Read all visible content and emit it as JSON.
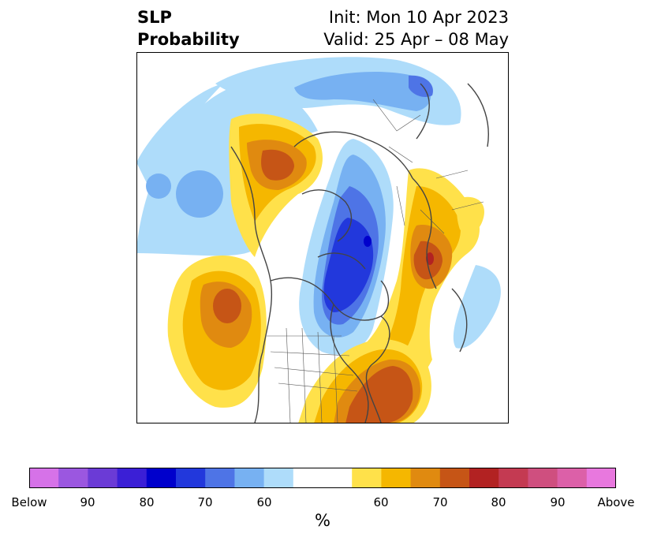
{
  "title": {
    "left_line1": "SLP",
    "left_line2": "Probability",
    "right_line1": "Init: Mon 10 Apr 2023",
    "right_line2": "Valid: 25 Apr – 08 May"
  },
  "colorbar": {
    "unit": "%",
    "colors": [
      "#d672e8",
      "#9b57e0",
      "#6b3bd6",
      "#3b1fd6",
      "#0000cc",
      "#2238dc",
      "#4e74e6",
      "#77b1f2",
      "#aedcfa",
      "#ffffff",
      "#ffffff",
      "#ffe14a",
      "#f5b700",
      "#e08a10",
      "#c65516",
      "#b22222",
      "#c43a52",
      "#cf4f7f",
      "#dc60a8",
      "#e878de"
    ],
    "ticks": [
      "Below",
      "90",
      "80",
      "70",
      "60",
      "60",
      "70",
      "80",
      "90",
      "Above"
    ]
  },
  "map": {
    "projection": "north-polar-stereographic",
    "colors": {
      "light_blue": "#aedcfa",
      "mid_blue": "#77b1f2",
      "blue": "#4e74e6",
      "royal_blue": "#2238dc",
      "deep_blue": "#0000cc",
      "yellow": "#ffe14a",
      "gold": "#f5b700",
      "orange": "#e08a10",
      "burnt_orange": "#c65516",
      "red": "#b22222",
      "border": "#444444"
    }
  }
}
